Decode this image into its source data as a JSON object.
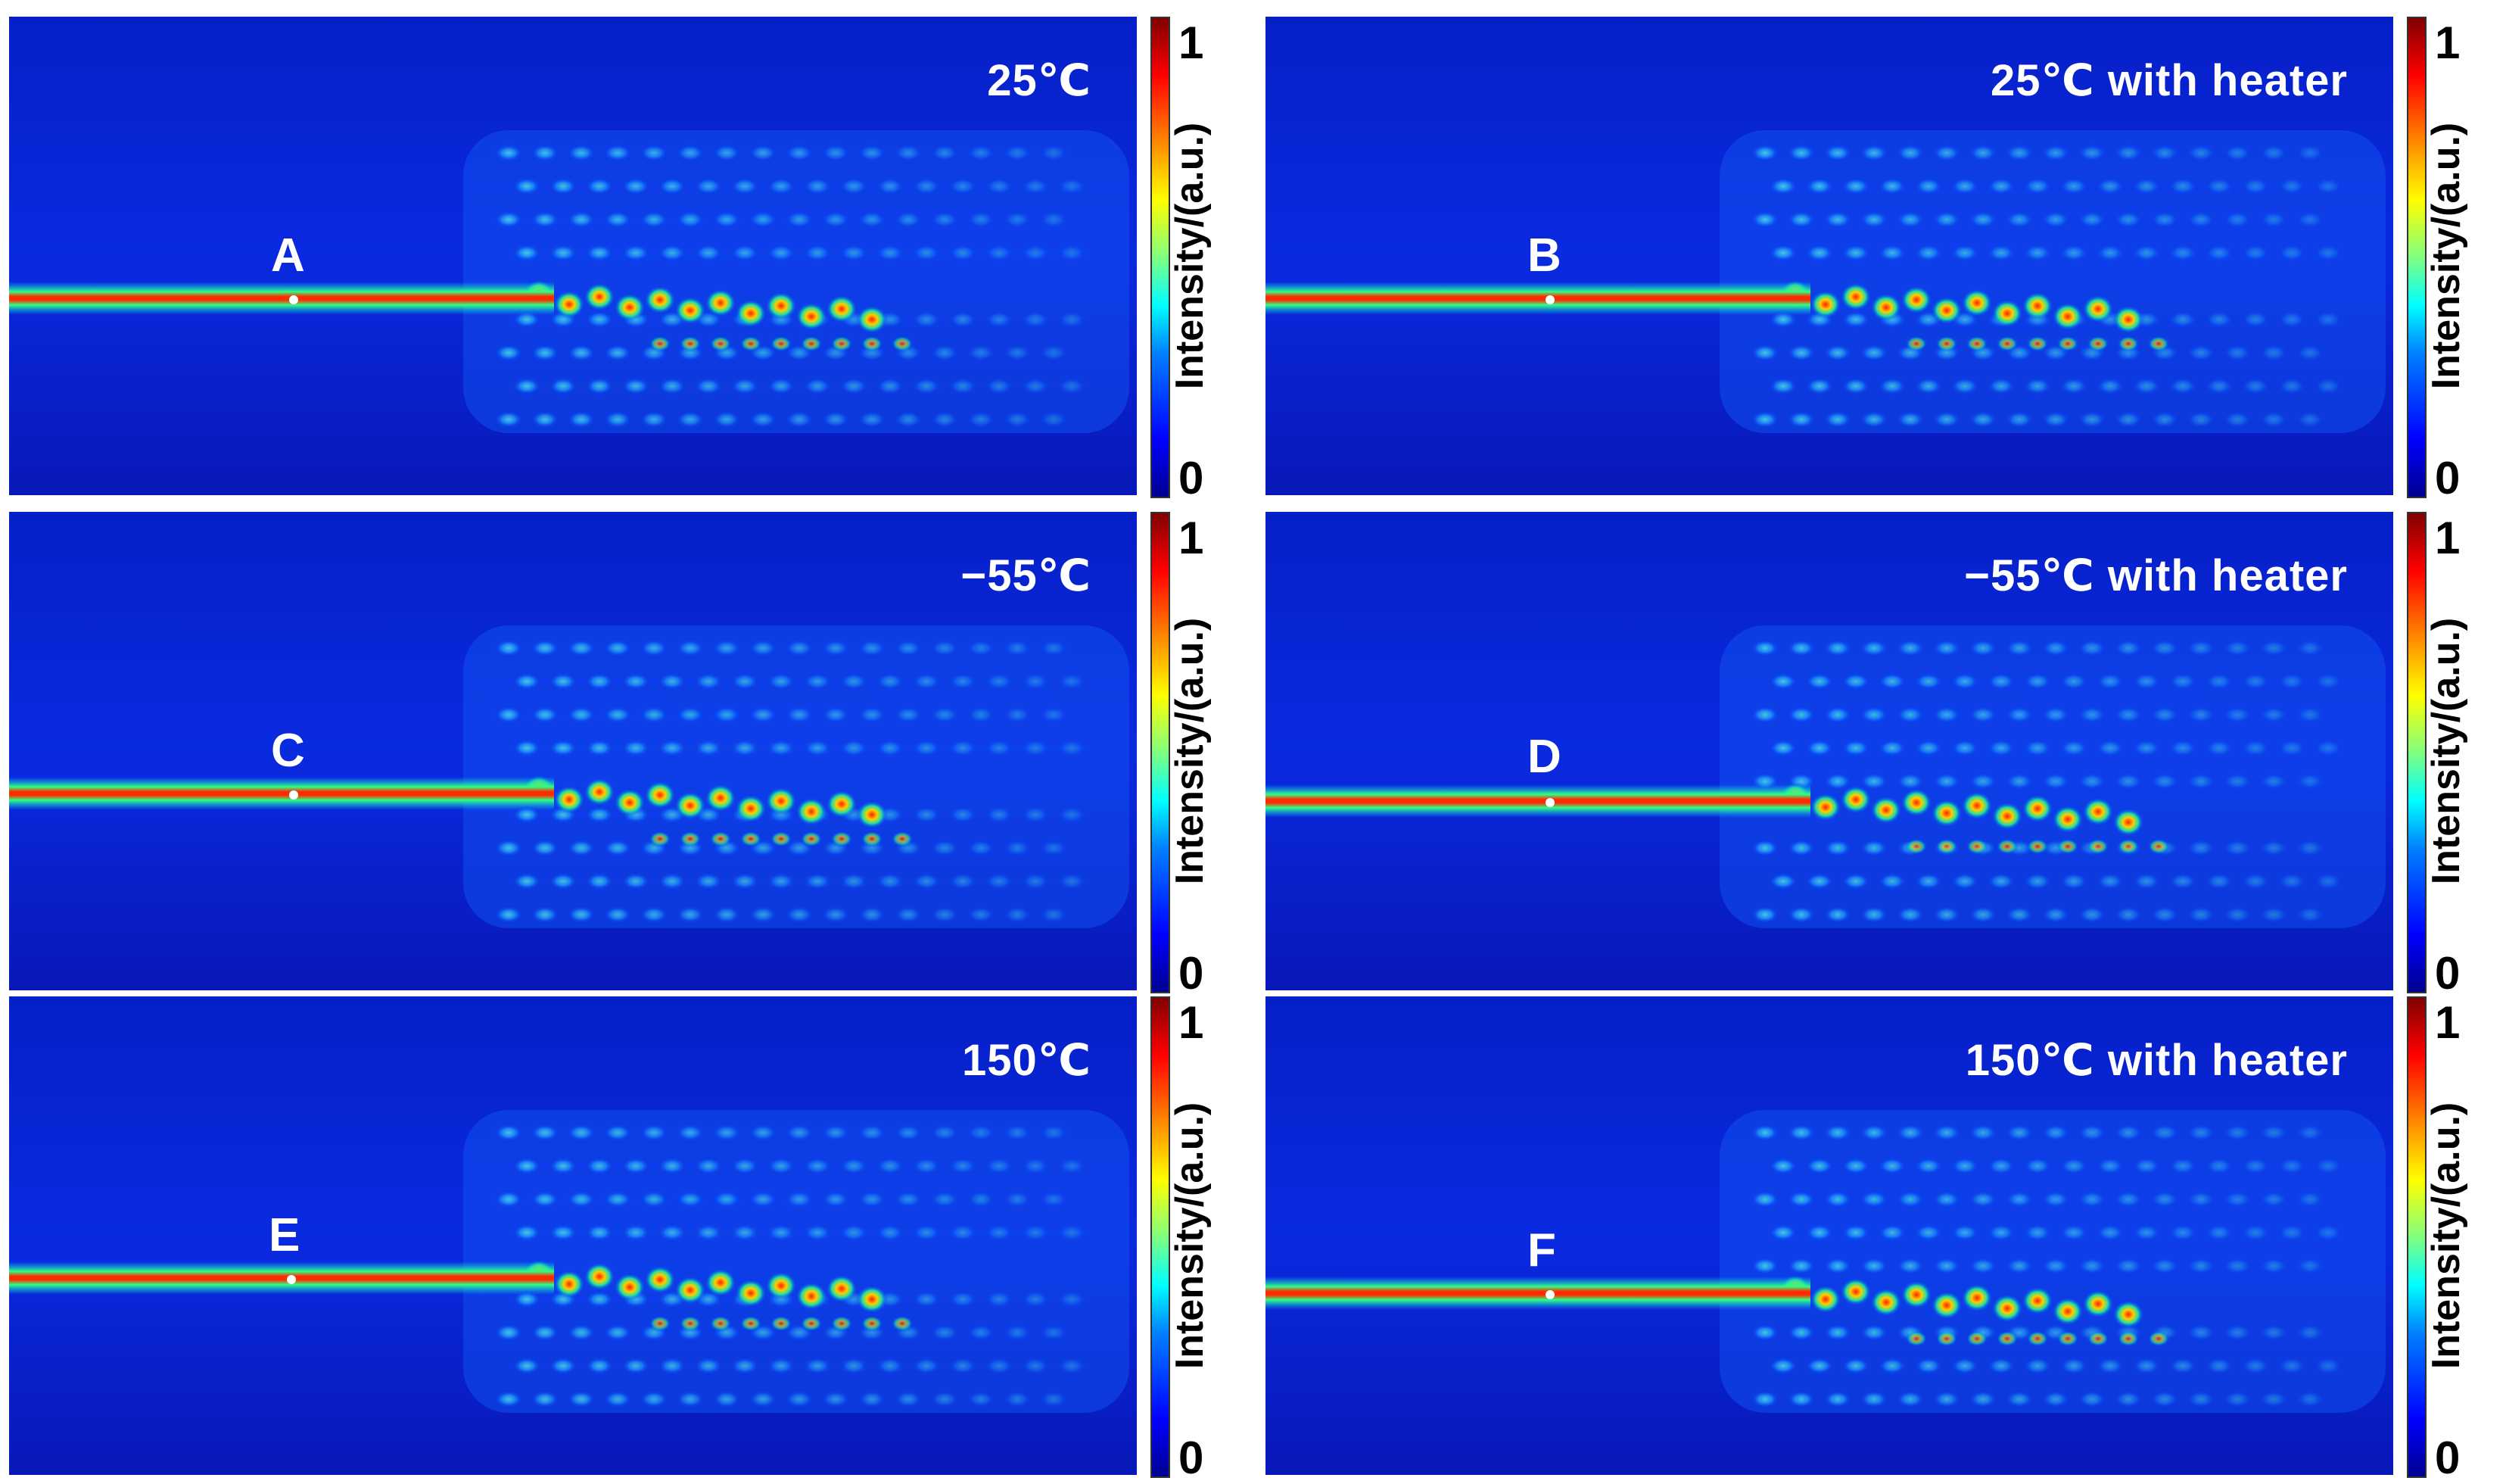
{
  "colorbar": {
    "label": "Intensity/(a.u.)",
    "max_label": "1",
    "min_label": "0"
  },
  "panels": [
    {
      "condition": "25℃",
      "marker": "A"
    },
    {
      "condition": "25℃ with heater",
      "marker": "B"
    },
    {
      "condition": "−55℃",
      "marker": "C"
    },
    {
      "condition": "−55℃ with heater",
      "marker": "D"
    },
    {
      "condition": "150℃",
      "marker": "E"
    },
    {
      "condition": "150℃ with heater",
      "marker": "F"
    }
  ],
  "colors": {
    "background_field": "#0a1fd6",
    "waveguide_core": "#e01010",
    "hotspot": "#ff2a00"
  }
}
